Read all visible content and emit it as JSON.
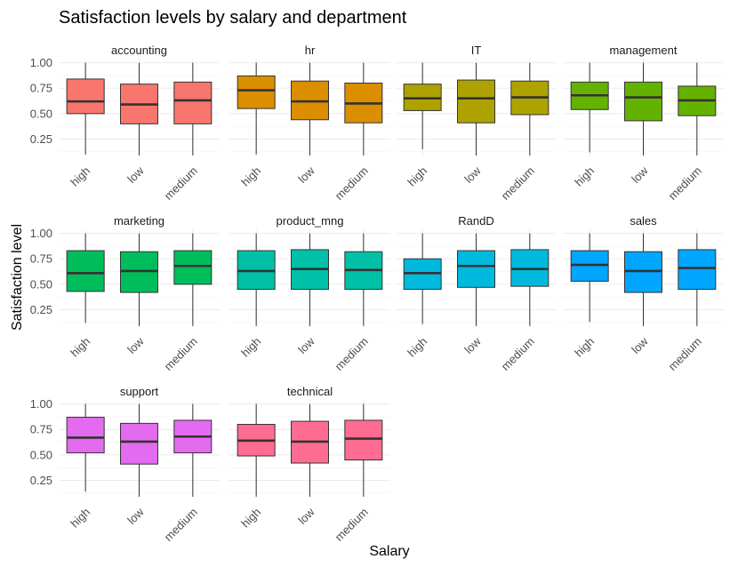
{
  "chart_data": {
    "type": "box",
    "title": "Satisfaction levels by salary and department",
    "xlabel": "Salary",
    "ylabel": "Satisfaction level",
    "ylim": [
      0.08,
      1.04
    ],
    "y_ticks": [
      0.25,
      0.5,
      0.75,
      1.0
    ],
    "y_tick_labels": [
      "0.25",
      "0.50",
      "0.75",
      "1.00"
    ],
    "categories": [
      "high",
      "low",
      "medium"
    ],
    "legend": "none",
    "grid": true,
    "panels": [
      {
        "name": "accounting",
        "color": "#F8766D",
        "boxes": [
          {
            "category": "high",
            "min": 0.1,
            "q1": 0.5,
            "median": 0.62,
            "q3": 0.84,
            "max": 1.0
          },
          {
            "category": "low",
            "min": 0.09,
            "q1": 0.4,
            "median": 0.59,
            "q3": 0.79,
            "max": 1.0
          },
          {
            "category": "medium",
            "min": 0.09,
            "q1": 0.4,
            "median": 0.63,
            "q3": 0.81,
            "max": 1.0
          }
        ]
      },
      {
        "name": "hr",
        "color": "#DB8E00",
        "boxes": [
          {
            "category": "high",
            "min": 0.1,
            "q1": 0.55,
            "median": 0.73,
            "q3": 0.87,
            "max": 1.0
          },
          {
            "category": "low",
            "min": 0.09,
            "q1": 0.44,
            "median": 0.62,
            "q3": 0.82,
            "max": 1.0
          },
          {
            "category": "medium",
            "min": 0.09,
            "q1": 0.41,
            "median": 0.6,
            "q3": 0.8,
            "max": 1.0
          }
        ]
      },
      {
        "name": "IT",
        "color": "#AEA200",
        "boxes": [
          {
            "category": "high",
            "min": 0.15,
            "q1": 0.53,
            "median": 0.65,
            "q3": 0.79,
            "max": 1.0
          },
          {
            "category": "low",
            "min": 0.09,
            "q1": 0.41,
            "median": 0.65,
            "q3": 0.83,
            "max": 1.0
          },
          {
            "category": "medium",
            "min": 0.09,
            "q1": 0.49,
            "median": 0.66,
            "q3": 0.82,
            "max": 1.0
          }
        ]
      },
      {
        "name": "management",
        "color": "#64B200",
        "boxes": [
          {
            "category": "high",
            "min": 0.12,
            "q1": 0.54,
            "median": 0.68,
            "q3": 0.81,
            "max": 1.0
          },
          {
            "category": "low",
            "min": 0.09,
            "q1": 0.43,
            "median": 0.66,
            "q3": 0.81,
            "max": 1.0
          },
          {
            "category": "medium",
            "min": 0.09,
            "q1": 0.48,
            "median": 0.63,
            "q3": 0.77,
            "max": 1.0
          }
        ]
      },
      {
        "name": "marketing",
        "color": "#00BD5C",
        "boxes": [
          {
            "category": "high",
            "min": 0.12,
            "q1": 0.43,
            "median": 0.61,
            "q3": 0.83,
            "max": 1.0
          },
          {
            "category": "low",
            "min": 0.09,
            "q1": 0.42,
            "median": 0.63,
            "q3": 0.82,
            "max": 1.0
          },
          {
            "category": "medium",
            "min": 0.09,
            "q1": 0.5,
            "median": 0.68,
            "q3": 0.83,
            "max": 1.0
          }
        ]
      },
      {
        "name": "product_mng",
        "color": "#00C1A7",
        "boxes": [
          {
            "category": "high",
            "min": 0.09,
            "q1": 0.45,
            "median": 0.63,
            "q3": 0.83,
            "max": 1.0
          },
          {
            "category": "low",
            "min": 0.09,
            "q1": 0.45,
            "median": 0.65,
            "q3": 0.84,
            "max": 1.0
          },
          {
            "category": "medium",
            "min": 0.09,
            "q1": 0.45,
            "median": 0.64,
            "q3": 0.82,
            "max": 1.0
          }
        ]
      },
      {
        "name": "RandD",
        "color": "#00BADE",
        "boxes": [
          {
            "category": "high",
            "min": 0.11,
            "q1": 0.45,
            "median": 0.61,
            "q3": 0.75,
            "max": 1.0
          },
          {
            "category": "low",
            "min": 0.09,
            "q1": 0.47,
            "median": 0.68,
            "q3": 0.83,
            "max": 1.0
          },
          {
            "category": "medium",
            "min": 0.09,
            "q1": 0.48,
            "median": 0.65,
            "q3": 0.84,
            "max": 1.0
          }
        ]
      },
      {
        "name": "sales",
        "color": "#00A6FF",
        "boxes": [
          {
            "category": "high",
            "min": 0.13,
            "q1": 0.53,
            "median": 0.69,
            "q3": 0.83,
            "max": 1.0
          },
          {
            "category": "low",
            "min": 0.09,
            "q1": 0.42,
            "median": 0.63,
            "q3": 0.82,
            "max": 1.0
          },
          {
            "category": "medium",
            "min": 0.09,
            "q1": 0.45,
            "median": 0.66,
            "q3": 0.84,
            "max": 1.0
          }
        ]
      },
      {
        "name": "support",
        "color": "#B385FF",
        "boxes": [
          {
            "category": "high",
            "min": 0.14,
            "q1": 0.52,
            "median": 0.67,
            "q3": 0.87,
            "max": 1.0
          },
          {
            "category": "low",
            "min": 0.09,
            "q1": 0.41,
            "median": 0.63,
            "q3": 0.81,
            "max": 1.0
          },
          {
            "category": "medium",
            "min": 0.09,
            "q1": 0.52,
            "median": 0.68,
            "q3": 0.84,
            "max": 1.0
          }
        ]
      },
      {
        "name": "technical",
        "color": "#EF67EB",
        "boxes": [
          {
            "category": "high",
            "min": 0.09,
            "q1": 0.49,
            "median": 0.64,
            "q3": 0.8,
            "max": 1.0
          },
          {
            "category": "low",
            "min": 0.09,
            "q1": 0.42,
            "median": 0.63,
            "q3": 0.83,
            "max": 1.0
          },
          {
            "category": "medium",
            "min": 0.09,
            "q1": 0.45,
            "median": 0.66,
            "q3": 0.84,
            "max": 1.0
          }
        ]
      }
    ]
  },
  "colors": {
    "support_override": "#E36BF0",
    "technical_override": "#FF6C91"
  }
}
